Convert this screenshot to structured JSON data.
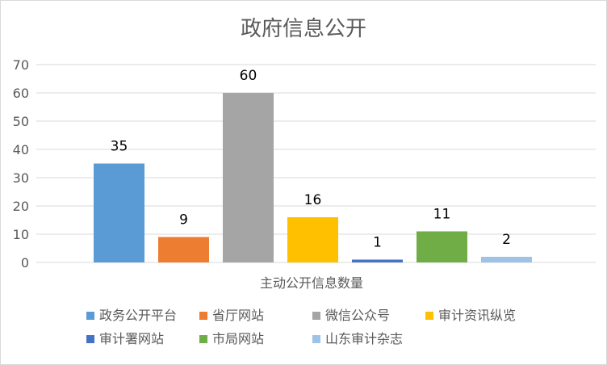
{
  "chart_data": {
    "type": "bar",
    "title": "政府信息公开",
    "xlabel": "主动公开信息数量",
    "ylabel": "",
    "ylim": [
      0,
      70
    ],
    "yticks": [
      0,
      10,
      20,
      30,
      40,
      50,
      60,
      70
    ],
    "grid": true,
    "legend_position": "bottom",
    "data_labels": true,
    "series": [
      {
        "name": "政务公开平台",
        "value": 35,
        "color": "#5b9bd5"
      },
      {
        "name": "省厅网站",
        "value": 9,
        "color": "#ed7d31"
      },
      {
        "name": "微信公众号",
        "value": 60,
        "color": "#a5a5a5"
      },
      {
        "name": "审计资讯纵览",
        "value": 16,
        "color": "#ffc000"
      },
      {
        "name": "审计署网站",
        "value": 1,
        "color": "#4472c4"
      },
      {
        "name": "市局网站",
        "value": 11,
        "color": "#70ad47"
      },
      {
        "name": "山东审计杂志",
        "value": 2,
        "color": "#9dc3e6"
      }
    ]
  }
}
